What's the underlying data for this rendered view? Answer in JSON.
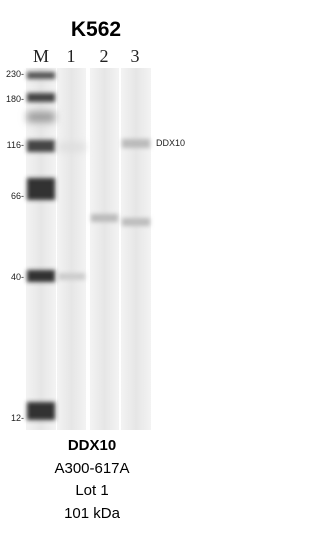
{
  "title": "K562",
  "lanes": [
    "M",
    "1",
    "2",
    "3"
  ],
  "markers": [
    "230-",
    "180-",
    "116-",
    "66-",
    "40-",
    "12-"
  ],
  "band_label": "DDX10",
  "footer": [
    "DDX10",
    "A300-617A",
    "Lot 1",
    "101 kDa"
  ]
}
